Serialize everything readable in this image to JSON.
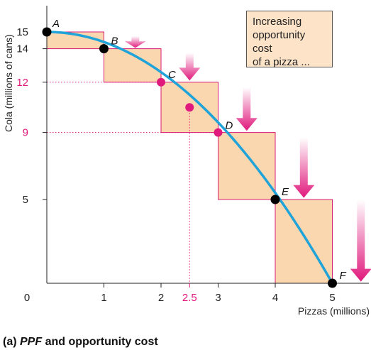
{
  "colors": {
    "curve": "#1fa3d8",
    "box_fill": "#fbd7b0",
    "box_stroke": "#d81b74",
    "pink": "#e0197c",
    "black_point": "#000000",
    "annotation_fill": "#fde3c8"
  },
  "chart_data": {
    "type": "line",
    "title": "",
    "xlabel": "Pizzas (millions)",
    "ylabel": "Cola (millions of cans)",
    "xlim": [
      0,
      5.6
    ],
    "ylim": [
      0,
      15.6
    ],
    "x_ticks": [
      "0",
      "1",
      "2",
      "2.5",
      "3",
      "4",
      "5"
    ],
    "y_ticks": [
      "5",
      "9",
      "12",
      "14",
      "15"
    ],
    "points": [
      {
        "label": "A",
        "x": 0,
        "y": 15,
        "color": "black"
      },
      {
        "label": "B",
        "x": 1,
        "y": 14,
        "color": "black"
      },
      {
        "label": "C",
        "x": 2,
        "y": 12,
        "color": "pink"
      },
      {
        "label": "",
        "x": 2.5,
        "y": 10.5,
        "color": "pink"
      },
      {
        "label": "D",
        "x": 3,
        "y": 9,
        "color": "pink"
      },
      {
        "label": "E",
        "x": 4,
        "y": 5,
        "color": "black"
      },
      {
        "label": "F",
        "x": 5,
        "y": 0,
        "color": "black"
      }
    ],
    "opportunity_cost_boxes": [
      {
        "x0": 0,
        "x1": 1,
        "y_top": 15,
        "y_bottom": 14
      },
      {
        "x0": 1,
        "x1": 2,
        "y_top": 14,
        "y_bottom": 12
      },
      {
        "x0": 2,
        "x1": 3,
        "y_top": 12,
        "y_bottom": 9
      },
      {
        "x0": 3,
        "x1": 4,
        "y_top": 9,
        "y_bottom": 5
      },
      {
        "x0": 4,
        "x1": 5,
        "y_top": 5,
        "y_bottom": 0
      }
    ],
    "arrows": [
      {
        "x": 1.55,
        "y_top": 14.75,
        "y_bottom": 14.05
      },
      {
        "x": 2.5,
        "y_top": 13.75,
        "y_bottom": 12.1
      },
      {
        "x": 3.5,
        "y_top": 11.7,
        "y_bottom": 9.1
      },
      {
        "x": 4.5,
        "y_top": 8.7,
        "y_bottom": 5.1
      },
      {
        "x": 5.5,
        "y_top": 5.0,
        "y_bottom": 0.1
      }
    ]
  },
  "annotation": {
    "line1": "Increasing",
    "line2": "opportunity cost",
    "line3": "of a pizza ..."
  },
  "caption": {
    "prefix": "(a) ",
    "italic": "PPF",
    "suffix": " and opportunity cost"
  }
}
